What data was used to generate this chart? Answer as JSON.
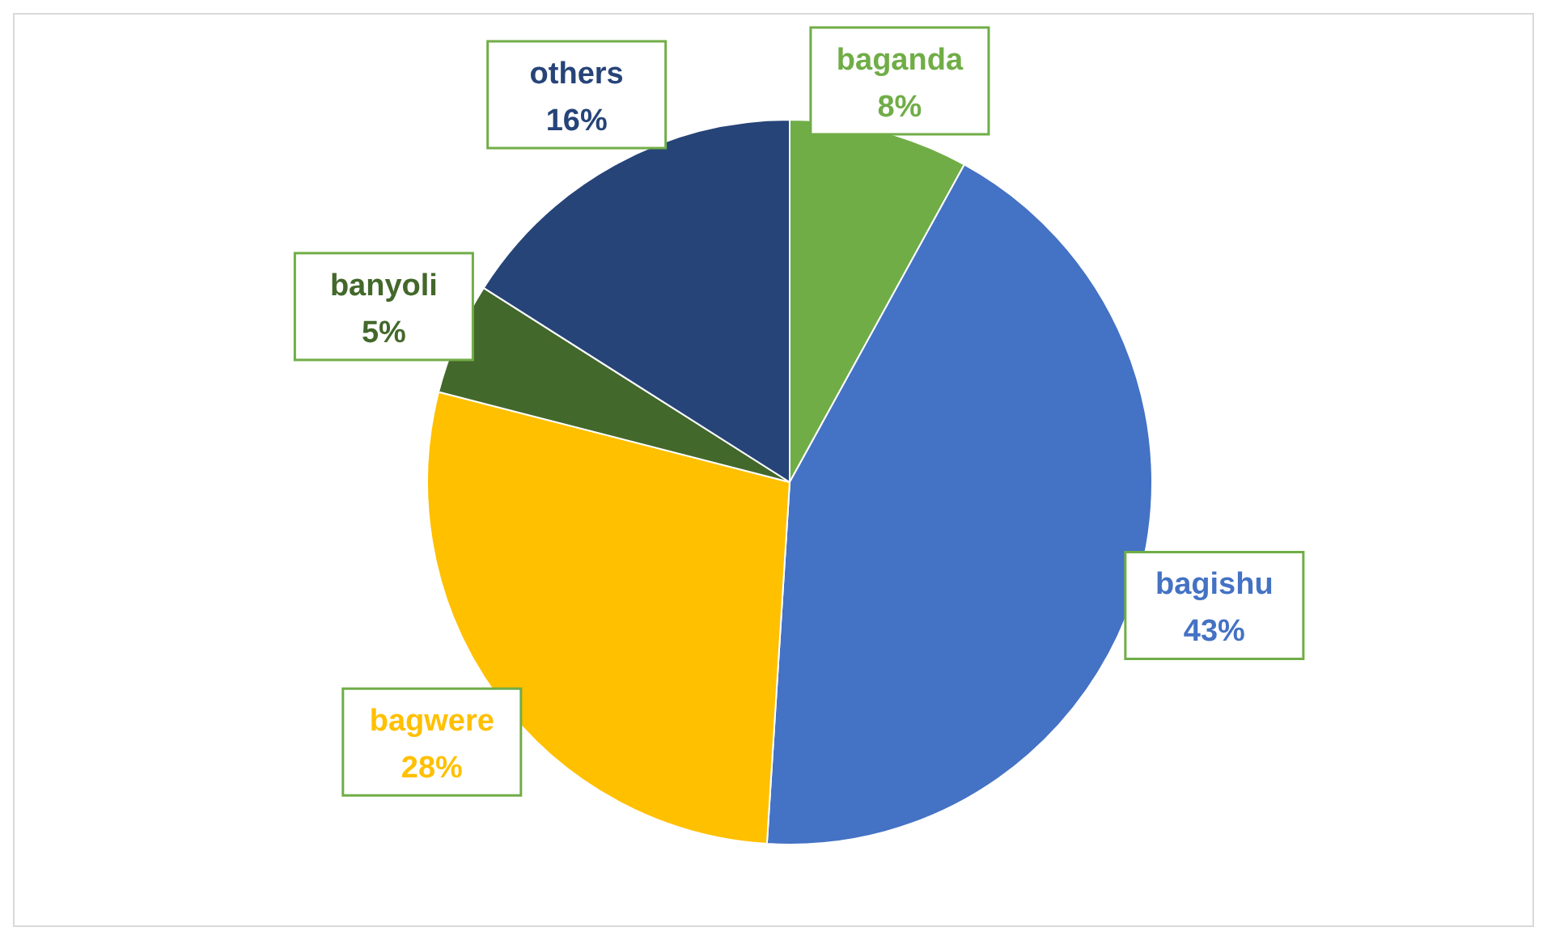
{
  "chart_data": {
    "type": "pie",
    "categories": [
      "baganda",
      "bagishu",
      "bagwere",
      "banyoli",
      "others"
    ],
    "values": [
      8,
      43,
      28,
      5,
      16
    ],
    "value_labels": [
      "8%",
      "43%",
      "28%",
      "5%",
      "16%"
    ],
    "colors": [
      "#70ad47",
      "#4472c4",
      "#ffc000",
      "#43682b",
      "#264478"
    ]
  }
}
